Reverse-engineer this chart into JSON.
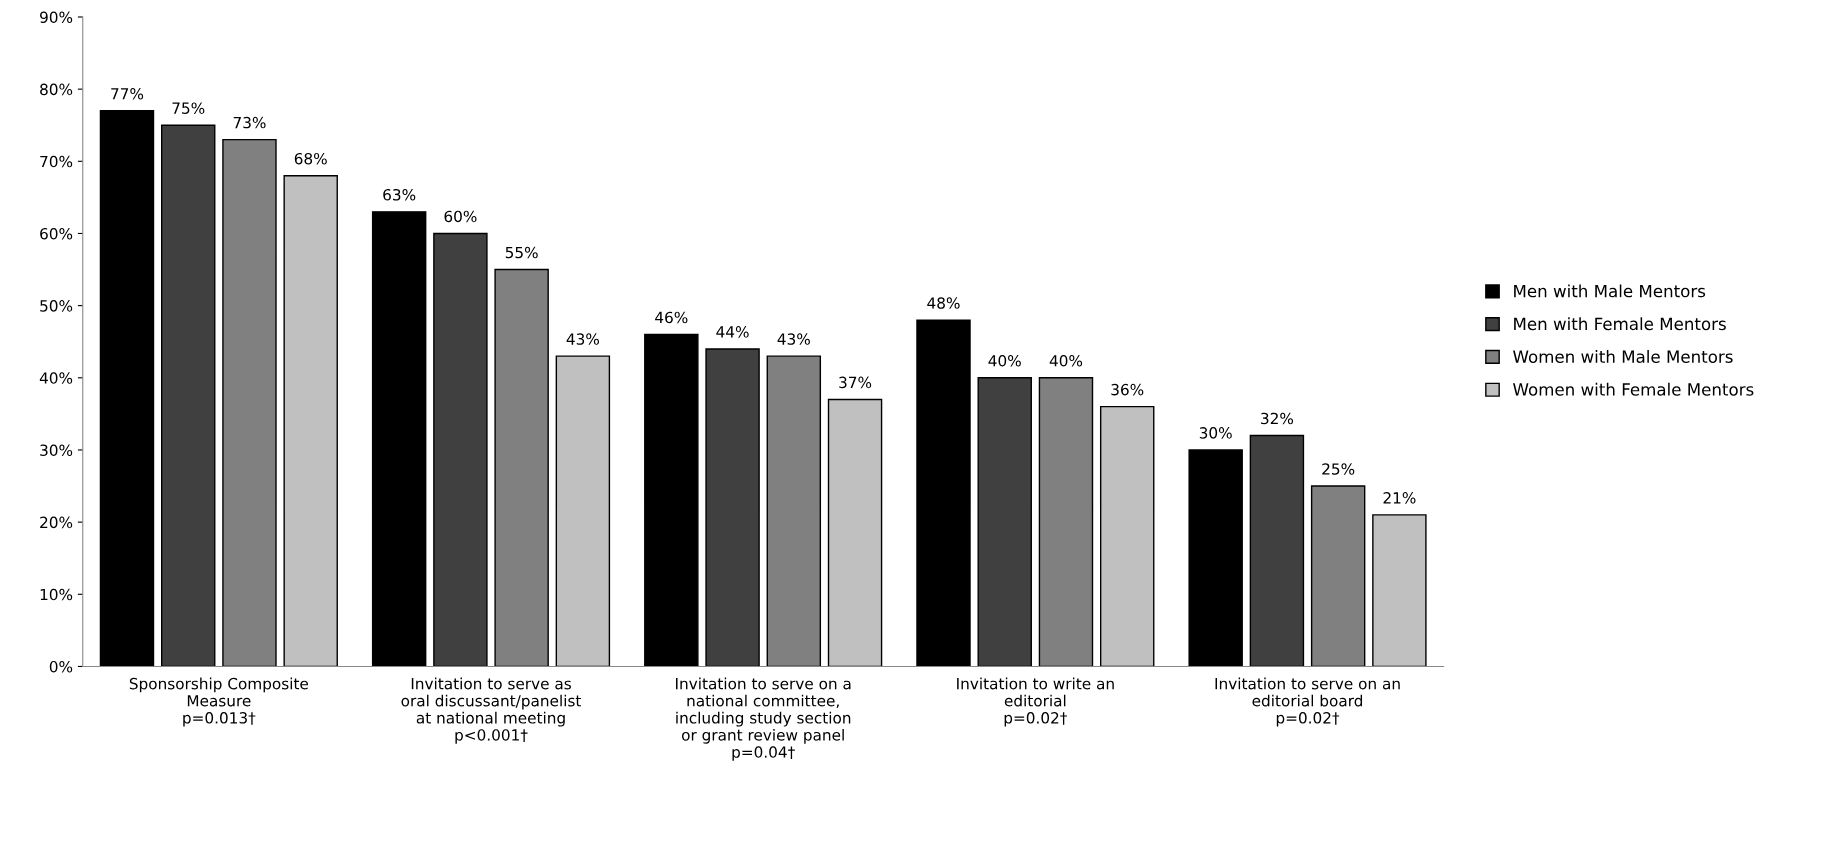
{
  "chart_data": {
    "type": "bar",
    "categories": [
      "Sponsorship Composite\nMeasure\np=0.013†",
      "Invitation to serve as\noral discussant/panelist\nat national meeting\np<0.001†",
      "Invitation to serve on a\nnational committee,\nincluding study section\nor grant review panel\np=0.04†",
      "Invitation to write an\neditorial\np=0.02†",
      "Invitation to serve on an\neditorial board\np=0.02†"
    ],
    "series": [
      {
        "name": "Men with Male Mentors",
        "color": "#000000",
        "values": [
          77,
          63,
          46,
          48,
          30
        ],
        "value_labels": [
          "77%",
          "63%",
          "46%",
          "48%",
          "30%"
        ]
      },
      {
        "name": "Men with Female Mentors",
        "color": "#404040",
        "values": [
          75,
          60,
          44,
          40,
          32
        ],
        "value_labels": [
          "75%",
          "60%",
          "44%",
          "40%",
          "32%"
        ]
      },
      {
        "name": "Women with Male Mentors",
        "color": "#808080",
        "values": [
          73,
          55,
          43,
          40,
          25
        ],
        "value_labels": [
          "73%",
          "55%",
          "43%",
          "40%",
          "25%"
        ]
      },
      {
        "name": "Women with Female Mentors",
        "color": "#c0c0c0",
        "values": [
          68,
          43,
          37,
          36,
          21
        ],
        "value_labels": [
          "68%",
          "43%",
          "37%",
          "36%",
          "21%"
        ]
      }
    ],
    "ylim": [
      0,
      90
    ],
    "yticks": [
      {
        "value": 0,
        "label": "0%"
      },
      {
        "value": 10,
        "label": "10%"
      },
      {
        "value": 20,
        "label": "20%"
      },
      {
        "value": 30,
        "label": "30%"
      },
      {
        "value": 40,
        "label": "40%"
      },
      {
        "value": 50,
        "label": "50%"
      },
      {
        "value": 60,
        "label": "60%"
      },
      {
        "value": 70,
        "label": "70%"
      },
      {
        "value": 80,
        "label": "80%"
      },
      {
        "value": 90,
        "label": "90%"
      }
    ],
    "grid": false,
    "legend": "right"
  }
}
